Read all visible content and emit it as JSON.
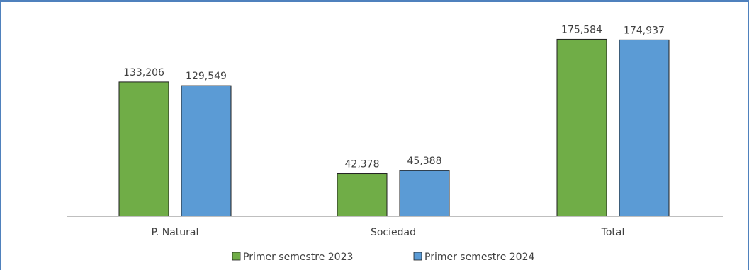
{
  "chart_data": {
    "type": "bar",
    "categories": [
      "P. Natural",
      "Sociedad",
      "Total"
    ],
    "series": [
      {
        "name": "Primer semestre 2023",
        "values": [
          133206,
          42378,
          175584
        ],
        "labels": [
          "133,206",
          "42,378",
          "175,584"
        ],
        "color": "#70ad47"
      },
      {
        "name": "Primer semestre 2024",
        "values": [
          129549,
          45388,
          174937
        ],
        "labels": [
          "129,549",
          "45,388",
          "174,937"
        ],
        "color": "#5b9bd5"
      }
    ],
    "legend_position": "bottom",
    "ylim": [
      0,
      185000
    ],
    "grid": false
  }
}
